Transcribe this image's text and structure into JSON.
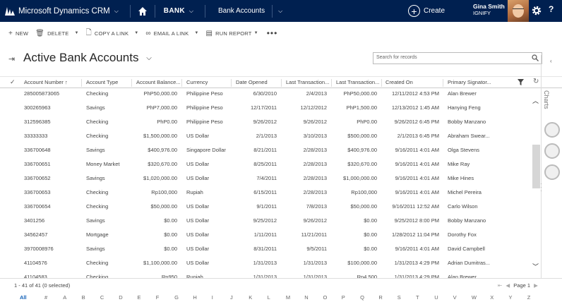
{
  "topbar": {
    "app_title": "Microsoft Dynamics CRM",
    "area": "BANK",
    "entity": "Bank Accounts",
    "create_label": "Create",
    "user_name": "Gina Smith",
    "org_name": "IGNIFY",
    "help_label": "?"
  },
  "commands": {
    "new": "NEW",
    "delete": "DELETE",
    "copy_link": "COPY A LINK",
    "email_link": "EMAIL A LINK",
    "run_report": "RUN REPORT"
  },
  "view": {
    "title": "Active Bank Accounts",
    "search_placeholder": "Search for records"
  },
  "grid": {
    "columns": [
      "Account Number",
      "Account Type",
      "Account Balance...",
      "Currency",
      "Date Opened",
      "Last Transaction...",
      "Last Transaction...",
      "Created On",
      "Primary Signator..."
    ],
    "sort_column": "Account Number",
    "rows": [
      [
        "285005873065",
        "Checking",
        "PhP50,000.00",
        "Philippine Peso",
        "6/30/2010",
        "2/4/2013",
        "PhP50,000.00",
        "12/11/2012 4:53 PM",
        "Alan Brewer"
      ],
      [
        "300265963",
        "Savings",
        "PhP7,000.00",
        "Philippine Peso",
        "12/17/2011",
        "12/12/2012",
        "PhP1,500.00",
        "12/13/2012 1:45 AM",
        "Hanying Feng"
      ],
      [
        "312596385",
        "Checking",
        "PhP0.00",
        "Philippine Peso",
        "9/26/2012",
        "9/26/2012",
        "PhP0.00",
        "9/26/2012 6:45 PM",
        "Bobby Manzano"
      ],
      [
        "33333333",
        "Checking",
        "$1,500,000.00",
        "US Dollar",
        "2/1/2013",
        "3/10/2013",
        "$500,000.00",
        "2/1/2013 6:45 PM",
        "Abraham Swear..."
      ],
      [
        "336700648",
        "Savings",
        "$400,976.00",
        "Singapore Dollar",
        "8/21/2011",
        "2/28/2013",
        "$400,976.00",
        "9/16/2011 4:01 AM",
        "Olga Stevens"
      ],
      [
        "336700651",
        "Money Market",
        "$320,670.00",
        "US Dollar",
        "8/25/2011",
        "2/28/2013",
        "$320,670.00",
        "9/16/2011 4:01 AM",
        "Mike Ray"
      ],
      [
        "336700652",
        "Savings",
        "$1,020,000.00",
        "US Dollar",
        "7/4/2011",
        "2/28/2013",
        "$1,000,000.00",
        "9/16/2011 4:01 AM",
        "Mike Hines"
      ],
      [
        "336700653",
        "Checking",
        "Rp100,000",
        "Rupiah",
        "6/15/2011",
        "2/28/2013",
        "Rp100,000",
        "9/16/2011 4:01 AM",
        "Michel Pereira"
      ],
      [
        "336700654",
        "Checking",
        "$50,000.00",
        "US Dollar",
        "9/1/2011",
        "7/8/2013",
        "$50,000.00",
        "9/16/2011 12:52 AM",
        "Carlo Wilson"
      ],
      [
        "3401256",
        "Savings",
        "$0.00",
        "US Dollar",
        "9/25/2012",
        "9/26/2012",
        "$0.00",
        "9/25/2012 8:00 PM",
        "Bobby Manzano"
      ],
      [
        "34562457",
        "Mortgage",
        "$0.00",
        "US Dollar",
        "1/11/2011",
        "11/21/2011",
        "$0.00",
        "1/28/2012 11:04 PM",
        "Dorothy Fox"
      ],
      [
        "3970008976",
        "Savings",
        "$0.00",
        "US Dollar",
        "8/31/2011",
        "9/5/2011",
        "$0.00",
        "9/16/2011 4:01 AM",
        "David Campbell"
      ],
      [
        "41104576",
        "Checking",
        "$1,100,000.00",
        "US Dollar",
        "1/31/2013",
        "1/31/2013",
        "$100,000.00",
        "1/31/2013 4:29 PM",
        "Adrian Dumitras..."
      ],
      [
        "41104583",
        "Checking",
        "Rp950",
        "Rupiah",
        "1/31/2013",
        "1/31/2013",
        "Rp4,500",
        "1/31/2013 4:29 PM",
        "Alan Brewer"
      ]
    ]
  },
  "charts_pane": {
    "label": "Charts"
  },
  "footer": {
    "record_count": "1 - 41 of 41 (0 selected)",
    "page_label": "Page 1",
    "alphabet": [
      "All",
      "#",
      "A",
      "B",
      "C",
      "D",
      "E",
      "F",
      "G",
      "H",
      "I",
      "J",
      "K",
      "L",
      "M",
      "N",
      "O",
      "P",
      "Q",
      "R",
      "S",
      "T",
      "U",
      "V",
      "W",
      "X",
      "Y",
      "Z"
    ]
  }
}
